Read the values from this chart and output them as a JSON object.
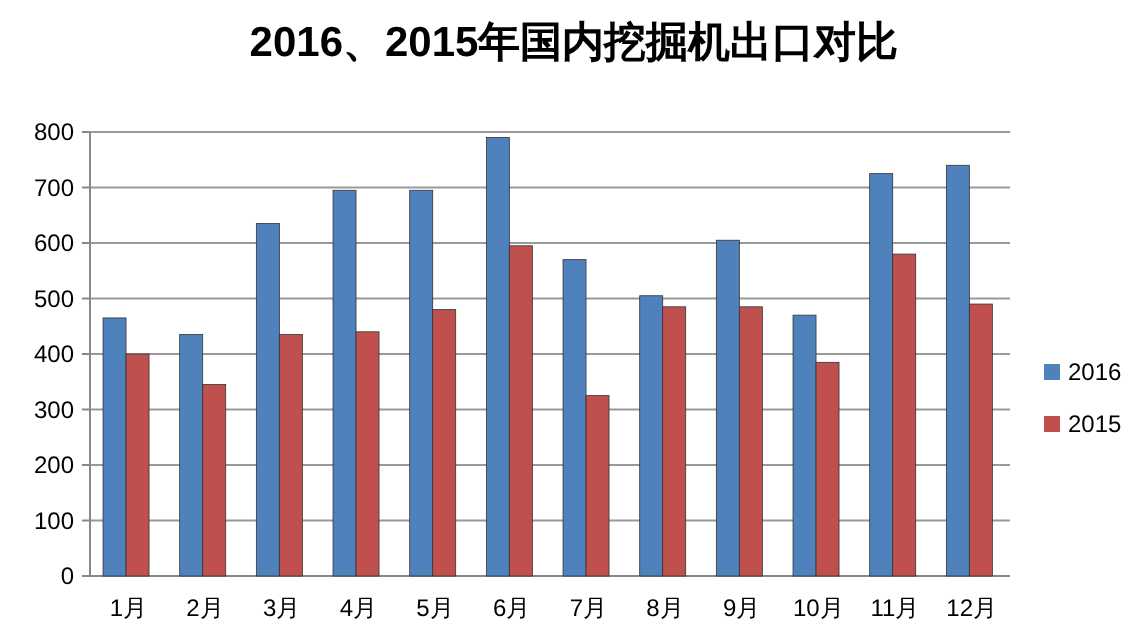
{
  "chart_data": {
    "type": "bar",
    "title": "2016、2015年国内挖掘机出口对比",
    "categories": [
      "1月",
      "2月",
      "3月",
      "4月",
      "5月",
      "6月",
      "7月",
      "8月",
      "9月",
      "10月",
      "11月",
      "12月"
    ],
    "series": [
      {
        "name": "2016",
        "color": "#4f81bd",
        "values": [
          465,
          435,
          635,
          695,
          695,
          790,
          570,
          505,
          605,
          470,
          725,
          740
        ]
      },
      {
        "name": "2015",
        "color": "#c0504d",
        "values": [
          400,
          345,
          435,
          440,
          480,
          595,
          325,
          485,
          485,
          385,
          580,
          490
        ]
      }
    ],
    "ylim": [
      0,
      800
    ],
    "yticks": [
      0,
      100,
      200,
      300,
      400,
      500,
      600,
      700,
      800
    ],
    "grid": "y",
    "legend": "right"
  }
}
